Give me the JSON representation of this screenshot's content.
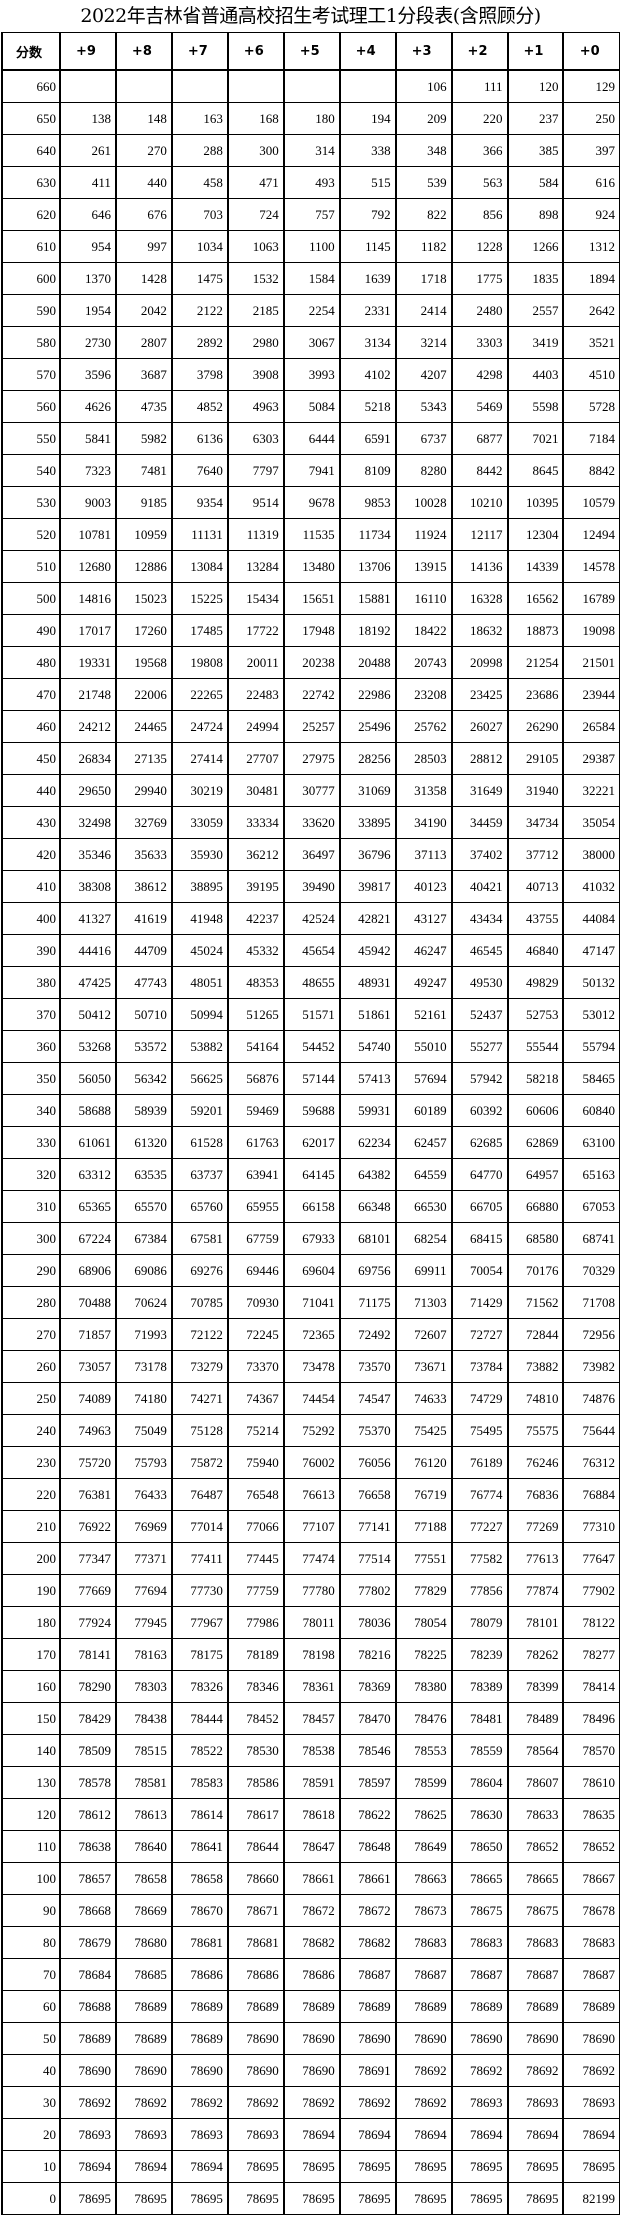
{
  "title": "2022年吉林省普通高校招生考试理工1分段表(含照顾分)",
  "headers": [
    "分数",
    "+9",
    "+8",
    "+7",
    "+6",
    "+5",
    "+4",
    "+3",
    "+2",
    "+1",
    "+0"
  ],
  "rows": [
    [
      "660",
      "",
      "",
      "",
      "",
      "",
      "",
      "106",
      "111",
      "120",
      "129"
    ],
    [
      "650",
      "138",
      "148",
      "163",
      "168",
      "180",
      "194",
      "209",
      "220",
      "237",
      "250"
    ],
    [
      "640",
      "261",
      "270",
      "288",
      "300",
      "314",
      "338",
      "348",
      "366",
      "385",
      "397"
    ],
    [
      "630",
      "411",
      "440",
      "458",
      "471",
      "493",
      "515",
      "539",
      "563",
      "584",
      "616"
    ],
    [
      "620",
      "646",
      "676",
      "703",
      "724",
      "757",
      "792",
      "822",
      "856",
      "898",
      "924"
    ],
    [
      "610",
      "954",
      "997",
      "1034",
      "1063",
      "1100",
      "1145",
      "1182",
      "1228",
      "1266",
      "1312"
    ],
    [
      "600",
      "1370",
      "1428",
      "1475",
      "1532",
      "1584",
      "1639",
      "1718",
      "1775",
      "1835",
      "1894"
    ],
    [
      "590",
      "1954",
      "2042",
      "2122",
      "2185",
      "2254",
      "2331",
      "2414",
      "2480",
      "2557",
      "2642"
    ],
    [
      "580",
      "2730",
      "2807",
      "2892",
      "2980",
      "3067",
      "3134",
      "3214",
      "3303",
      "3419",
      "3521"
    ],
    [
      "570",
      "3596",
      "3687",
      "3798",
      "3908",
      "3993",
      "4102",
      "4207",
      "4298",
      "4403",
      "4510"
    ],
    [
      "560",
      "4626",
      "4735",
      "4852",
      "4963",
      "5084",
      "5218",
      "5343",
      "5469",
      "5598",
      "5728"
    ],
    [
      "550",
      "5841",
      "5982",
      "6136",
      "6303",
      "6444",
      "6591",
      "6737",
      "6877",
      "7021",
      "7184"
    ],
    [
      "540",
      "7323",
      "7481",
      "7640",
      "7797",
      "7941",
      "8109",
      "8280",
      "8442",
      "8645",
      "8842"
    ],
    [
      "530",
      "9003",
      "9185",
      "9354",
      "9514",
      "9678",
      "9853",
      "10028",
      "10210",
      "10395",
      "10579"
    ],
    [
      "520",
      "10781",
      "10959",
      "11131",
      "11319",
      "11535",
      "11734",
      "11924",
      "12117",
      "12304",
      "12494"
    ],
    [
      "510",
      "12680",
      "12886",
      "13084",
      "13284",
      "13480",
      "13706",
      "13915",
      "14136",
      "14339",
      "14578"
    ],
    [
      "500",
      "14816",
      "15023",
      "15225",
      "15434",
      "15651",
      "15881",
      "16110",
      "16328",
      "16562",
      "16789"
    ],
    [
      "490",
      "17017",
      "17260",
      "17485",
      "17722",
      "17948",
      "18192",
      "18422",
      "18632",
      "18873",
      "19098"
    ],
    [
      "480",
      "19331",
      "19568",
      "19808",
      "20011",
      "20238",
      "20488",
      "20743",
      "20998",
      "21254",
      "21501"
    ],
    [
      "470",
      "21748",
      "22006",
      "22265",
      "22483",
      "22742",
      "22986",
      "23208",
      "23425",
      "23686",
      "23944"
    ],
    [
      "460",
      "24212",
      "24465",
      "24724",
      "24994",
      "25257",
      "25496",
      "25762",
      "26027",
      "26290",
      "26584"
    ],
    [
      "450",
      "26834",
      "27135",
      "27414",
      "27707",
      "27975",
      "28256",
      "28503",
      "28812",
      "29105",
      "29387"
    ],
    [
      "440",
      "29650",
      "29940",
      "30219",
      "30481",
      "30777",
      "31069",
      "31358",
      "31649",
      "31940",
      "32221"
    ],
    [
      "430",
      "32498",
      "32769",
      "33059",
      "33334",
      "33620",
      "33895",
      "34190",
      "34459",
      "34734",
      "35054"
    ],
    [
      "420",
      "35346",
      "35633",
      "35930",
      "36212",
      "36497",
      "36796",
      "37113",
      "37402",
      "37712",
      "38000"
    ],
    [
      "410",
      "38308",
      "38612",
      "38895",
      "39195",
      "39490",
      "39817",
      "40123",
      "40421",
      "40713",
      "41032"
    ],
    [
      "400",
      "41327",
      "41619",
      "41948",
      "42237",
      "42524",
      "42821",
      "43127",
      "43434",
      "43755",
      "44084"
    ],
    [
      "390",
      "44416",
      "44709",
      "45024",
      "45332",
      "45654",
      "45942",
      "46247",
      "46545",
      "46840",
      "47147"
    ],
    [
      "380",
      "47425",
      "47743",
      "48051",
      "48353",
      "48655",
      "48931",
      "49247",
      "49530",
      "49829",
      "50132"
    ],
    [
      "370",
      "50412",
      "50710",
      "50994",
      "51265",
      "51571",
      "51861",
      "52161",
      "52437",
      "52753",
      "53012"
    ],
    [
      "360",
      "53268",
      "53572",
      "53882",
      "54164",
      "54452",
      "54740",
      "55010",
      "55277",
      "55544",
      "55794"
    ],
    [
      "350",
      "56050",
      "56342",
      "56625",
      "56876",
      "57144",
      "57413",
      "57694",
      "57942",
      "58218",
      "58465"
    ],
    [
      "340",
      "58688",
      "58939",
      "59201",
      "59469",
      "59688",
      "59931",
      "60189",
      "60392",
      "60606",
      "60840"
    ],
    [
      "330",
      "61061",
      "61320",
      "61528",
      "61763",
      "62017",
      "62234",
      "62457",
      "62685",
      "62869",
      "63100"
    ],
    [
      "320",
      "63312",
      "63535",
      "63737",
      "63941",
      "64145",
      "64382",
      "64559",
      "64770",
      "64957",
      "65163"
    ],
    [
      "310",
      "65365",
      "65570",
      "65760",
      "65955",
      "66158",
      "66348",
      "66530",
      "66705",
      "66880",
      "67053"
    ],
    [
      "300",
      "67224",
      "67384",
      "67581",
      "67759",
      "67933",
      "68101",
      "68254",
      "68415",
      "68580",
      "68741"
    ],
    [
      "290",
      "68906",
      "69086",
      "69276",
      "69446",
      "69604",
      "69756",
      "69911",
      "70054",
      "70176",
      "70329"
    ],
    [
      "280",
      "70488",
      "70624",
      "70785",
      "70930",
      "71041",
      "71175",
      "71303",
      "71429",
      "71562",
      "71708"
    ],
    [
      "270",
      "71857",
      "71993",
      "72122",
      "72245",
      "72365",
      "72492",
      "72607",
      "72727",
      "72844",
      "72956"
    ],
    [
      "260",
      "73057",
      "73178",
      "73279",
      "73370",
      "73478",
      "73570",
      "73671",
      "73784",
      "73882",
      "73982"
    ],
    [
      "250",
      "74089",
      "74180",
      "74271",
      "74367",
      "74454",
      "74547",
      "74633",
      "74729",
      "74810",
      "74876"
    ],
    [
      "240",
      "74963",
      "75049",
      "75128",
      "75214",
      "75292",
      "75370",
      "75425",
      "75495",
      "75575",
      "75644"
    ],
    [
      "230",
      "75720",
      "75793",
      "75872",
      "75940",
      "76002",
      "76056",
      "76120",
      "76189",
      "76246",
      "76312"
    ],
    [
      "220",
      "76381",
      "76433",
      "76487",
      "76548",
      "76613",
      "76658",
      "76719",
      "76774",
      "76836",
      "76884"
    ],
    [
      "210",
      "76922",
      "76969",
      "77014",
      "77066",
      "77107",
      "77141",
      "77188",
      "77227",
      "77269",
      "77310"
    ],
    [
      "200",
      "77347",
      "77371",
      "77411",
      "77445",
      "77474",
      "77514",
      "77551",
      "77582",
      "77613",
      "77647"
    ],
    [
      "190",
      "77669",
      "77694",
      "77730",
      "77759",
      "77780",
      "77802",
      "77829",
      "77856",
      "77874",
      "77902"
    ],
    [
      "180",
      "77924",
      "77945",
      "77967",
      "77986",
      "78011",
      "78036",
      "78054",
      "78079",
      "78101",
      "78122"
    ],
    [
      "170",
      "78141",
      "78163",
      "78175",
      "78189",
      "78198",
      "78216",
      "78225",
      "78239",
      "78262",
      "78277"
    ],
    [
      "160",
      "78290",
      "78303",
      "78326",
      "78346",
      "78361",
      "78369",
      "78380",
      "78389",
      "78399",
      "78414"
    ],
    [
      "150",
      "78429",
      "78438",
      "78444",
      "78452",
      "78457",
      "78470",
      "78476",
      "78481",
      "78489",
      "78496"
    ],
    [
      "140",
      "78509",
      "78515",
      "78522",
      "78530",
      "78538",
      "78546",
      "78553",
      "78559",
      "78564",
      "78570"
    ],
    [
      "130",
      "78578",
      "78581",
      "78583",
      "78586",
      "78591",
      "78597",
      "78599",
      "78604",
      "78607",
      "78610"
    ],
    [
      "120",
      "78612",
      "78613",
      "78614",
      "78617",
      "78618",
      "78622",
      "78625",
      "78630",
      "78633",
      "78635"
    ],
    [
      "110",
      "78638",
      "78640",
      "78641",
      "78644",
      "78647",
      "78648",
      "78649",
      "78650",
      "78652",
      "78652"
    ],
    [
      "100",
      "78657",
      "78658",
      "78658",
      "78660",
      "78661",
      "78661",
      "78663",
      "78665",
      "78665",
      "78667"
    ],
    [
      "90",
      "78668",
      "78669",
      "78670",
      "78671",
      "78672",
      "78672",
      "78673",
      "78675",
      "78675",
      "78678"
    ],
    [
      "80",
      "78679",
      "78680",
      "78681",
      "78681",
      "78682",
      "78682",
      "78683",
      "78683",
      "78683",
      "78683"
    ],
    [
      "70",
      "78684",
      "78685",
      "78686",
      "78686",
      "78686",
      "78687",
      "78687",
      "78687",
      "78687",
      "78687"
    ],
    [
      "60",
      "78688",
      "78689",
      "78689",
      "78689",
      "78689",
      "78689",
      "78689",
      "78689",
      "78689",
      "78689"
    ],
    [
      "50",
      "78689",
      "78689",
      "78689",
      "78690",
      "78690",
      "78690",
      "78690",
      "78690",
      "78690",
      "78690"
    ],
    [
      "40",
      "78690",
      "78690",
      "78690",
      "78690",
      "78690",
      "78691",
      "78692",
      "78692",
      "78692",
      "78692"
    ],
    [
      "30",
      "78692",
      "78692",
      "78692",
      "78692",
      "78692",
      "78692",
      "78692",
      "78693",
      "78693",
      "78693"
    ],
    [
      "20",
      "78693",
      "78693",
      "78693",
      "78693",
      "78694",
      "78694",
      "78694",
      "78694",
      "78694",
      "78694"
    ],
    [
      "10",
      "78694",
      "78694",
      "78694",
      "78695",
      "78695",
      "78695",
      "78695",
      "78695",
      "78695",
      "78695"
    ],
    [
      "0",
      "78695",
      "78695",
      "78695",
      "78695",
      "78695",
      "78695",
      "78695",
      "78695",
      "78695",
      "82199"
    ]
  ]
}
